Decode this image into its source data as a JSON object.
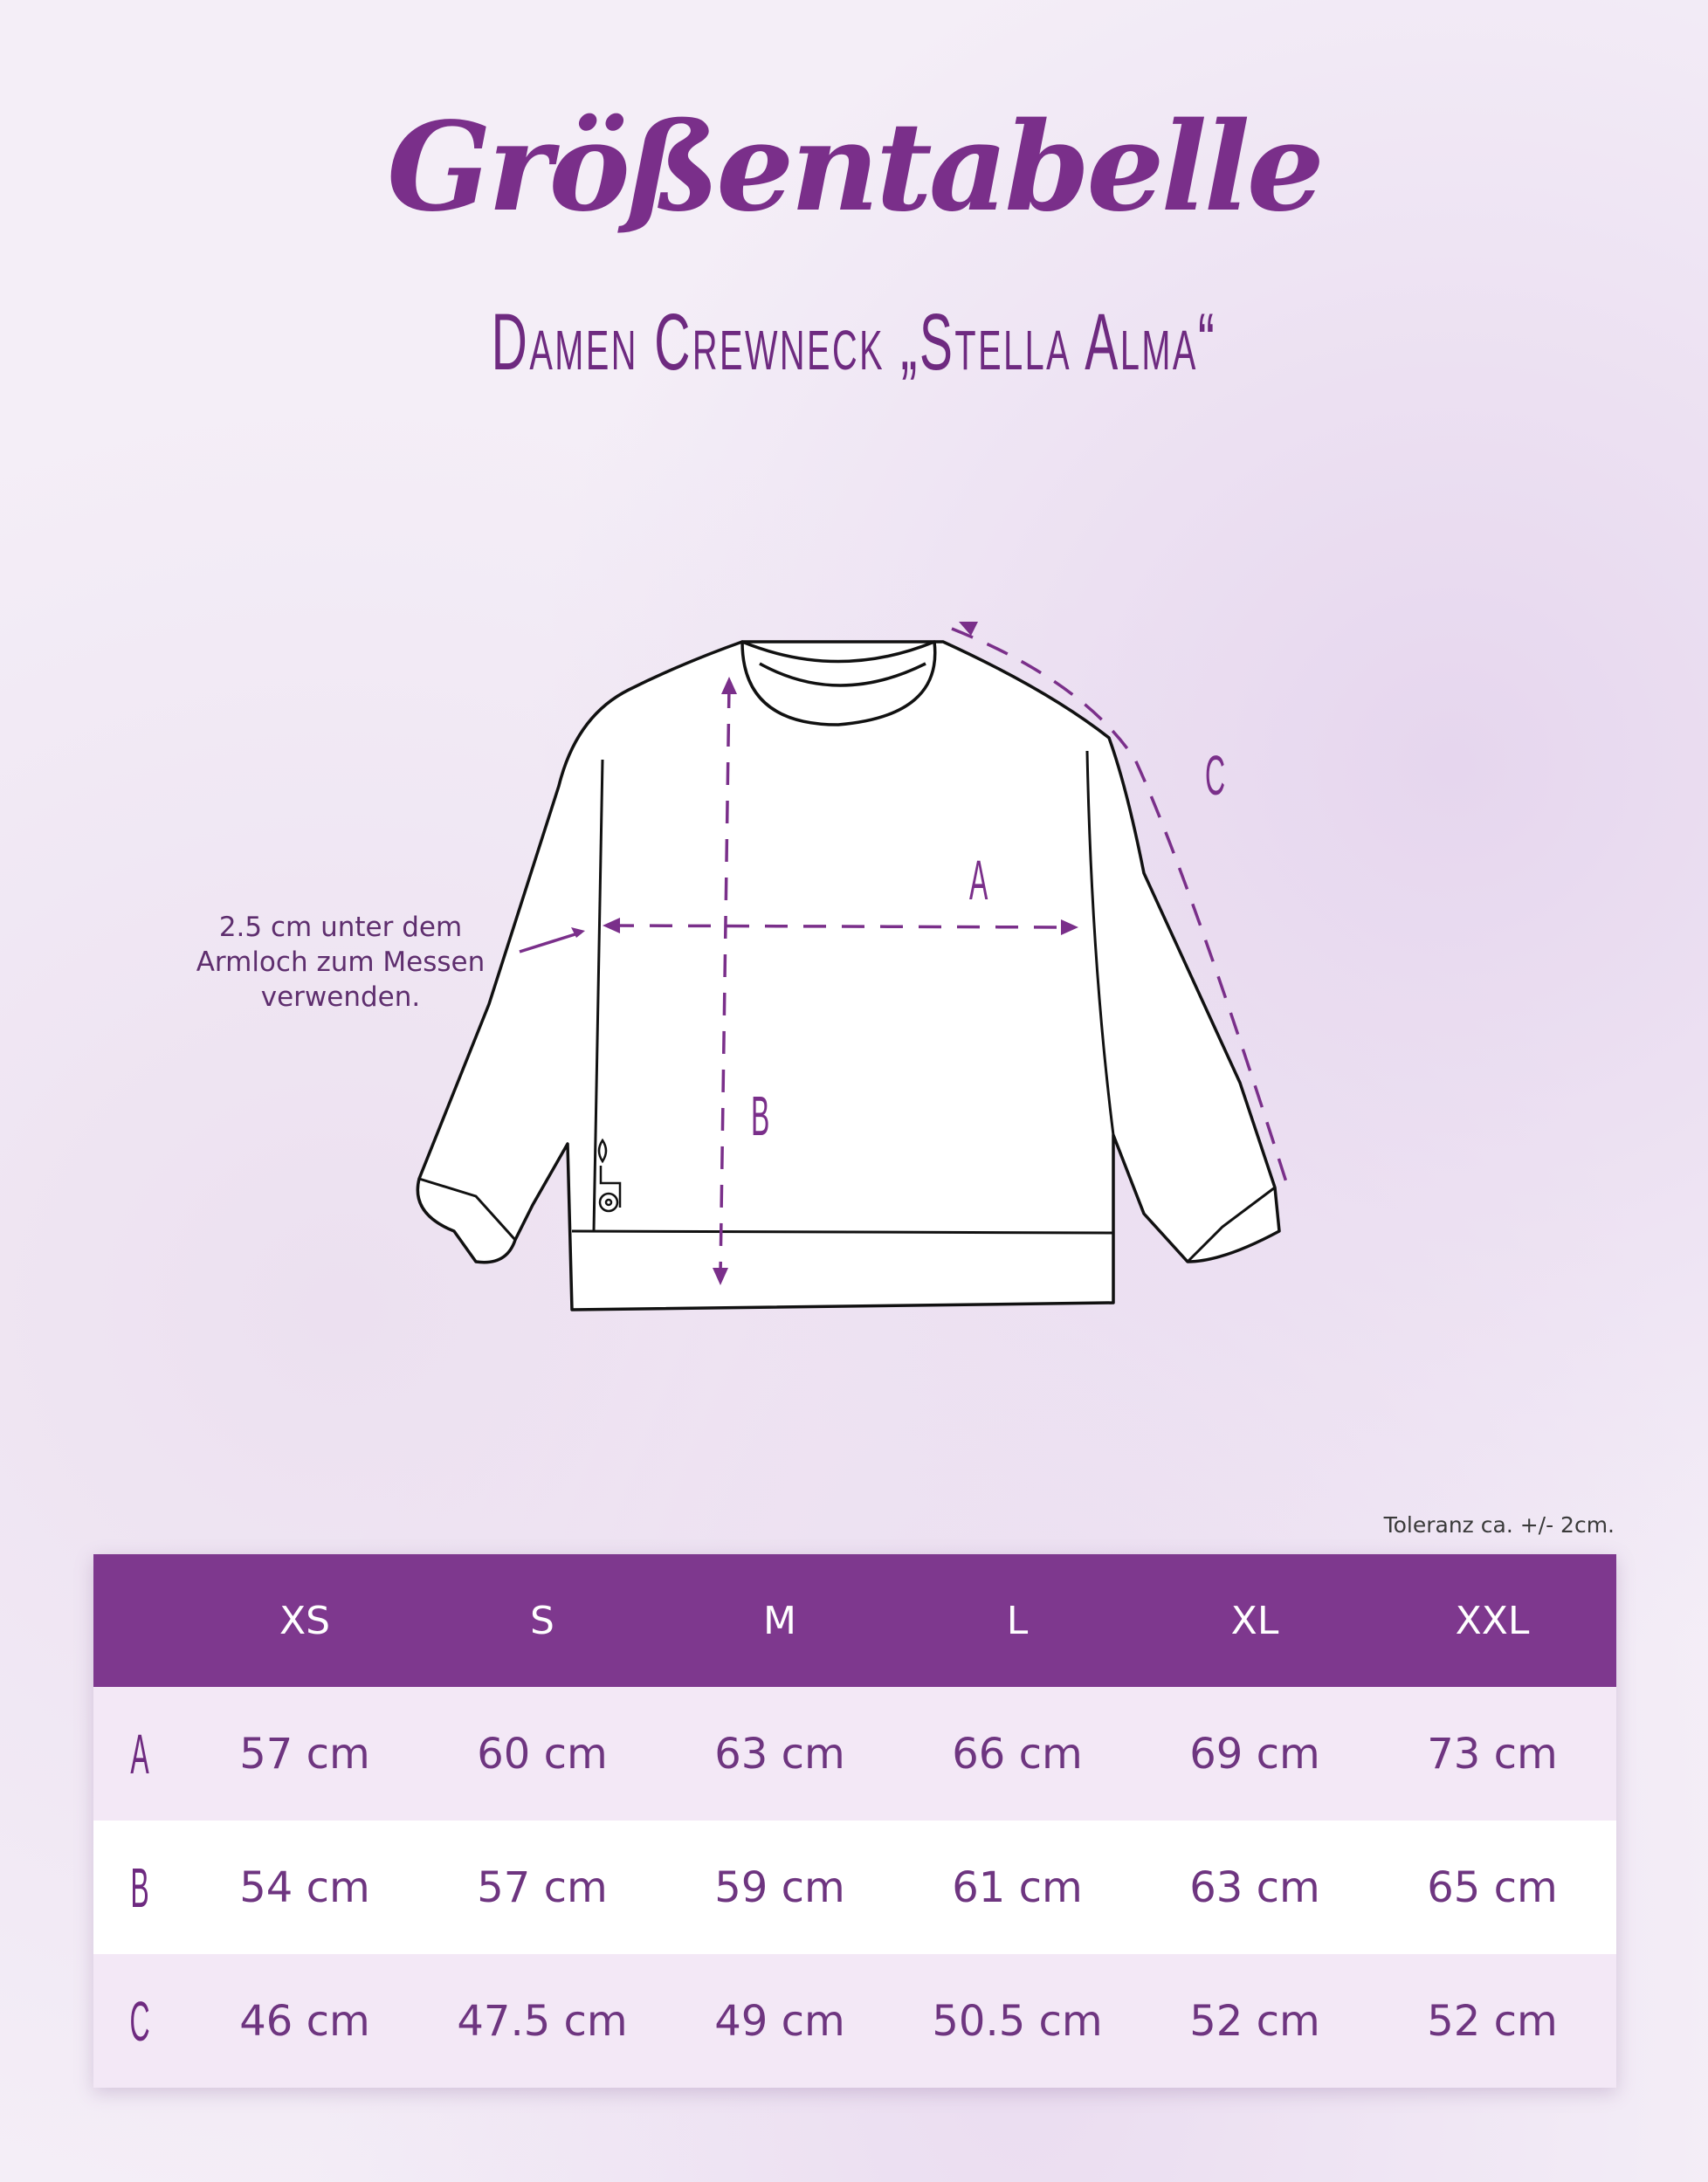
{
  "title": "Größentabelle",
  "subtitle": "Damen Crewneck „Stella Alma“",
  "diagram": {
    "note": "2.5 cm unter dem Armloch zum Messen verwenden.",
    "labels": {
      "a": "A",
      "b": "B",
      "c": "C"
    }
  },
  "tolerance": "Toleranz ca. +/- 2cm.",
  "colors": {
    "accent": "#7e388e",
    "row_alt": "#f3e8f6"
  },
  "table": {
    "headers": [
      "",
      "XS",
      "S",
      "M",
      "L",
      "XL",
      "XXL"
    ],
    "rows": [
      {
        "label": "A",
        "values": [
          "57 cm",
          "60 cm",
          "63 cm",
          "66 cm",
          "69 cm",
          "73 cm"
        ]
      },
      {
        "label": "B",
        "values": [
          "54 cm",
          "57 cm",
          "59 cm",
          "61 cm",
          "63 cm",
          "65 cm"
        ]
      },
      {
        "label": "C",
        "values": [
          "46 cm",
          "47.5 cm",
          "49 cm",
          "50.5 cm",
          "52 cm",
          "52 cm"
        ]
      }
    ]
  }
}
